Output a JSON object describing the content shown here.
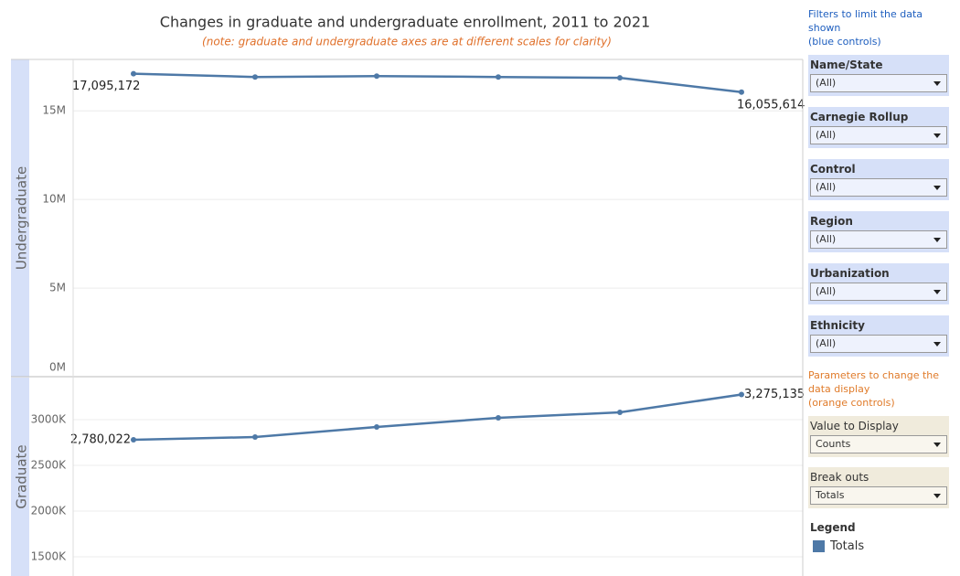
{
  "title": "Changes in graduate and undergraduate enrollment, 2011 to 2021",
  "note": "(note: graduate and undergraduate axes are at different scales for clarity)",
  "chart_data": [
    {
      "type": "line",
      "y_label": "Undergraduate",
      "categories": [
        null,
        null,
        null,
        null,
        null,
        null
      ],
      "series": [
        {
          "name": "Totals",
          "color": "#4e79a7",
          "values": [
            17095172,
            16910000,
            16960000,
            16910000,
            16860000,
            16055614
          ],
          "value_labels": [
            "17,095,172",
            null,
            null,
            null,
            null,
            "16,055,614"
          ]
        }
      ],
      "ylim": [
        0,
        17900000
      ],
      "yticks": [
        {
          "value": 0,
          "label": "0M"
        },
        {
          "value": 5000000,
          "label": "5M"
        },
        {
          "value": 10000000,
          "label": "10M"
        },
        {
          "value": 15000000,
          "label": "15M"
        }
      ],
      "grid": true
    },
    {
      "type": "line",
      "y_label": "Graduate",
      "categories": [
        null,
        null,
        null,
        null,
        null,
        null
      ],
      "series": [
        {
          "name": "Totals",
          "color": "#4e79a7",
          "values": [
            2780022,
            2810000,
            2920000,
            3020000,
            3080000,
            3275135
          ],
          "value_labels": [
            "2,780,022",
            null,
            null,
            null,
            null,
            "3,275,135"
          ]
        }
      ],
      "ylim": [
        1290000,
        3460000
      ],
      "yticks": [
        {
          "value": 1500000,
          "label": "1500K"
        },
        {
          "value": 2000000,
          "label": "2000K"
        },
        {
          "value": 2500000,
          "label": "2500K"
        },
        {
          "value": 3000000,
          "label": "3000K"
        }
      ],
      "grid": true
    }
  ],
  "filters": {
    "heading": [
      "Filters to limit the data shown",
      "(blue controls)"
    ],
    "items": [
      {
        "label": "Name/State",
        "value": "(All)"
      },
      {
        "label": "Carnegie Rollup",
        "value": "(All)"
      },
      {
        "label": "Control",
        "value": "(All)"
      },
      {
        "label": "Region",
        "value": "(All)"
      },
      {
        "label": "Urbanization",
        "value": "(All)"
      },
      {
        "label": "Ethnicity",
        "value": "(All)"
      }
    ]
  },
  "parameters": {
    "heading": [
      "Parameters to change the data display",
      "(orange controls)"
    ],
    "items": [
      {
        "label": "Value to Display",
        "value": "Counts"
      },
      {
        "label": "Break outs",
        "value": "Totals"
      }
    ]
  },
  "legend": {
    "title": "Legend"
  }
}
